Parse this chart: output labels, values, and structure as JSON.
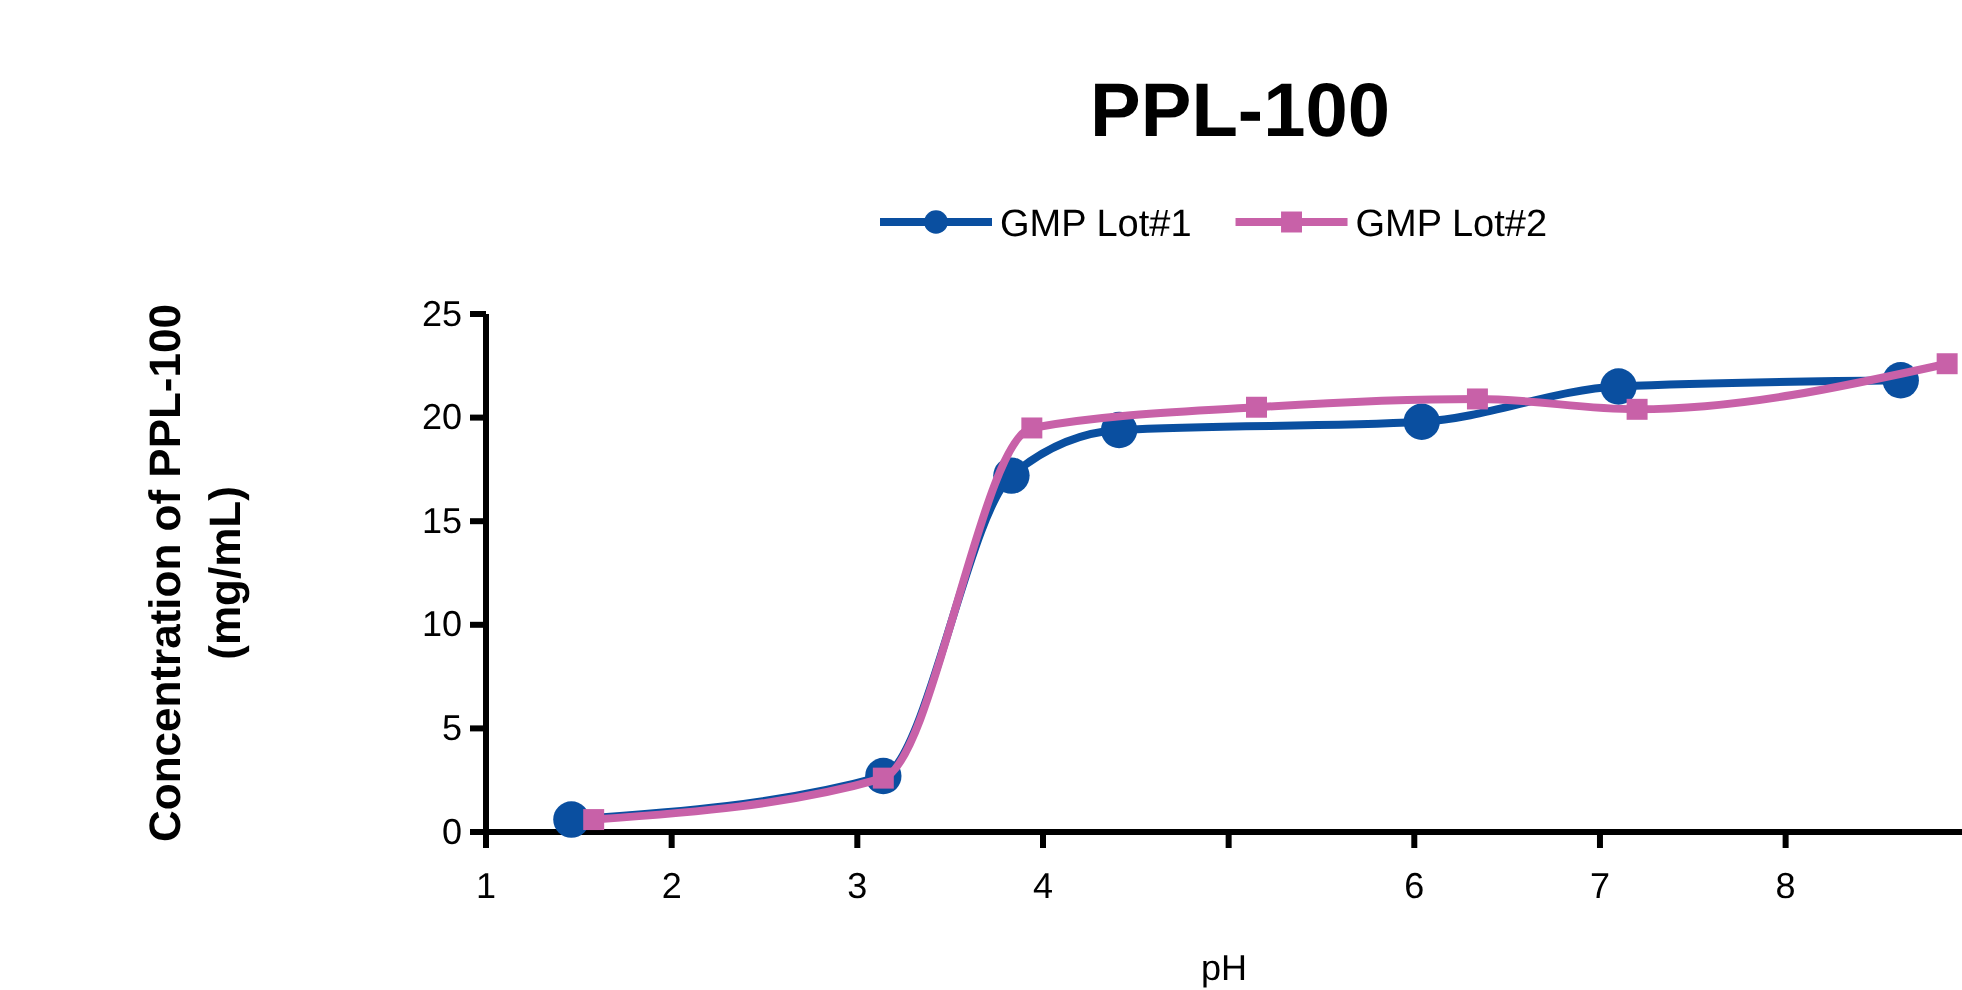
{
  "chart_data": {
    "type": "line",
    "title": "PPL-100",
    "xlabel": "pH",
    "ylabel": "Concentration of PPL-100 (mg/mL)",
    "legend": "top",
    "xlim": [
      1,
      8.95
    ],
    "xticks": [
      1,
      2,
      3,
      4,
      {
        "value": 5,
        "label": null
      },
      6,
      7,
      8
    ],
    "ylim": [
      0,
      25
    ],
    "yticks": [
      0,
      5,
      10,
      15,
      20,
      25
    ],
    "series": [
      {
        "name": "GMP Lot#1",
        "color": "#0a4fa0",
        "marker": "circle",
        "x": [
          1.46,
          3.14,
          3.83,
          4.41,
          6.04,
          7.1,
          8.62
        ],
        "values": [
          0.6,
          2.7,
          17.2,
          19.4,
          19.8,
          21.5,
          21.8
        ]
      },
      {
        "name": "GMP Lot#2",
        "color": "#c861a8",
        "marker": "square",
        "x": [
          1.58,
          3.14,
          3.94,
          5.15,
          6.34,
          7.2,
          8.87
        ],
        "values": [
          0.6,
          2.6,
          19.5,
          20.5,
          20.9,
          20.4,
          22.6
        ]
      }
    ]
  }
}
